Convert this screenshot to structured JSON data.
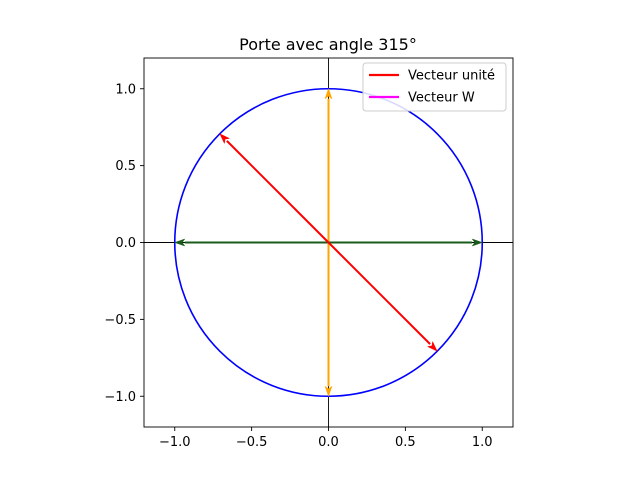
{
  "chart_data": {
    "type": "line",
    "title": "Porte avec angle 315°",
    "xlabel": "",
    "ylabel": "",
    "xlim": [
      -1.2,
      1.2
    ],
    "ylim": [
      -1.2,
      1.2
    ],
    "xticks": [
      -1.0,
      -0.5,
      0.0,
      0.5,
      1.0
    ],
    "yticks": [
      -1.0,
      -0.5,
      0.0,
      0.5,
      1.0
    ],
    "xtick_labels": [
      "−1.0",
      "−0.5",
      "0.0",
      "0.5",
      "1.0"
    ],
    "ytick_labels": [
      "−1.0",
      "−0.5",
      "0.0",
      "0.5",
      "1.0"
    ],
    "grid": false,
    "axes_lines": {
      "horizontal_y": 0,
      "vertical_x": 0
    },
    "circle": {
      "center": [
        0,
        0
      ],
      "radius": 1,
      "color": "#0000ff"
    },
    "legend": {
      "placement": "top-right",
      "entries": [
        {
          "label": "Vecteur unité",
          "color": "#ff0000"
        },
        {
          "label": "Vecteur W",
          "color": "#ff00ff"
        }
      ]
    },
    "vectors": [
      {
        "from": [
          0,
          0
        ],
        "to": [
          0,
          1
        ],
        "color": "#ffa500"
      },
      {
        "from": [
          0,
          0
        ],
        "to": [
          0,
          -1
        ],
        "color": "#ffa500"
      },
      {
        "from": [
          0,
          0
        ],
        "to": [
          1,
          0
        ],
        "color": "#1a5c1a"
      },
      {
        "from": [
          0,
          0
        ],
        "to": [
          -1,
          0
        ],
        "color": "#1a5c1a"
      },
      {
        "from": [
          0,
          0
        ],
        "to": [
          -0.707,
          0.707
        ],
        "color": "#ff0000"
      },
      {
        "from": [
          0,
          0
        ],
        "to": [
          0.707,
          -0.707
        ],
        "color": "#ff0000"
      }
    ]
  }
}
